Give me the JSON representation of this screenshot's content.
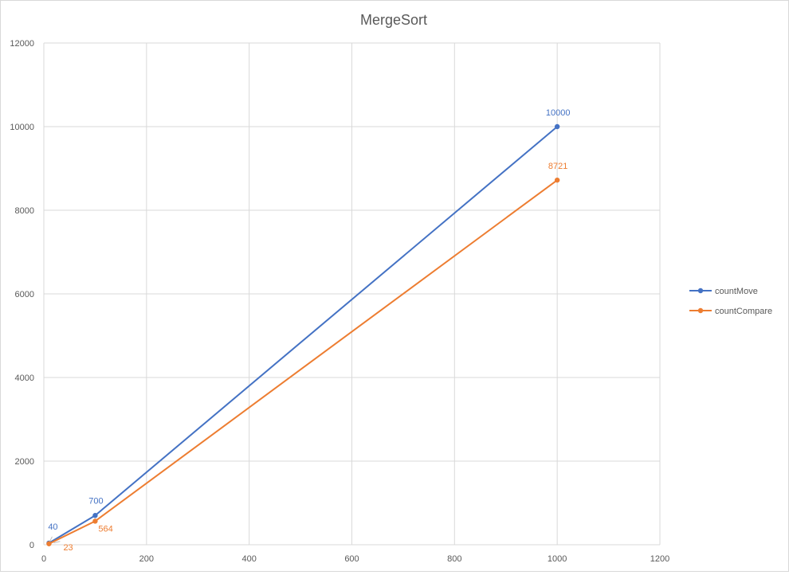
{
  "chart_data": {
    "type": "line",
    "title": "MergeSort",
    "xlabel": "",
    "ylabel": "",
    "xlim": [
      0,
      1200
    ],
    "ylim": [
      0,
      12000
    ],
    "x_ticks": [
      "0",
      "200",
      "400",
      "600",
      "800",
      "1000",
      "1200"
    ],
    "y_ticks": [
      "0",
      "2000",
      "4000",
      "6000",
      "8000",
      "10000",
      "12000"
    ],
    "grid": true,
    "legend_position": "right",
    "x": [
      10,
      100,
      1000
    ],
    "series": [
      {
        "name": "countMove",
        "color": "#4472c4",
        "values": [
          40,
          700,
          10000
        ],
        "data_labels": [
          "40",
          "700",
          "10000"
        ]
      },
      {
        "name": "countCompare",
        "color": "#ed7d31",
        "values": [
          23,
          564,
          8721
        ],
        "data_labels": [
          "23",
          "564",
          "8721"
        ]
      }
    ]
  }
}
